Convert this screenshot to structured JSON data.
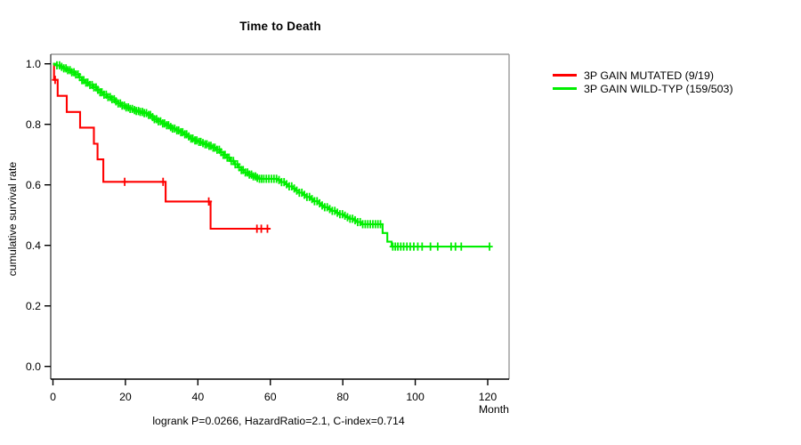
{
  "window": {
    "background": "#ffffff"
  },
  "chart_data": {
    "type": "line",
    "subtype": "kaplan-meier-step",
    "title": "Time to Death",
    "xlabel": "Month",
    "ylabel": "cumulative survival rate",
    "caption": "logrank P=0.0266, HazardRatio=2.1, C-index=0.714",
    "stats": {
      "logrank_p": 0.0266,
      "hazard_ratio": 2.1,
      "c_index": 0.714
    },
    "x_ticks": [
      0,
      20,
      40,
      60,
      80,
      100,
      120
    ],
    "y_ticks": [
      "0.0",
      "0.2",
      "0.4",
      "0.6",
      "0.8",
      "1.0"
    ],
    "xlim": [
      0,
      125
    ],
    "ylim": [
      0,
      1
    ],
    "grid": false,
    "legend_position": "right-outside",
    "axis_color": "#000000",
    "frame_color": "#9a9a9a",
    "series": [
      {
        "name": "mutated",
        "label": "3P GAIN MUTATED (9/19)",
        "color": "#ff0000",
        "events": 9,
        "n": 19,
        "points": [
          [
            0,
            1.0
          ],
          [
            0.3,
            0.947
          ],
          [
            1.3,
            0.894
          ],
          [
            3.8,
            0.841
          ],
          [
            7.5,
            0.789
          ],
          [
            11.3,
            0.736
          ],
          [
            12.3,
            0.684
          ],
          [
            13.9,
            0.61
          ],
          [
            31.1,
            0.545
          ],
          [
            43.5,
            0.455
          ],
          [
            60,
            0.455
          ]
        ],
        "censor_months": [
          0.6,
          19.8,
          30.4,
          43.0,
          56.3,
          57.5,
          59.2
        ]
      },
      {
        "name": "wild-typ",
        "label": "3P GAIN WILD-TYP (159/503)",
        "color": "#00ee00",
        "events": 159,
        "n": 503,
        "points": [
          [
            0,
            1.0
          ],
          [
            1,
            0.995
          ],
          [
            2,
            0.99
          ],
          [
            3,
            0.985
          ],
          [
            4,
            0.979
          ],
          [
            5,
            0.972
          ],
          [
            6,
            0.965
          ],
          [
            7,
            0.956
          ],
          [
            8,
            0.946
          ],
          [
            9,
            0.938
          ],
          [
            10,
            0.93
          ],
          [
            11,
            0.922
          ],
          [
            12,
            0.914
          ],
          [
            13,
            0.906
          ],
          [
            14,
            0.898
          ],
          [
            15,
            0.89
          ],
          [
            16,
            0.883
          ],
          [
            17,
            0.876
          ],
          [
            18,
            0.869
          ],
          [
            19,
            0.862
          ],
          [
            20,
            0.856
          ],
          [
            21,
            0.851
          ],
          [
            22,
            0.847
          ],
          [
            23,
            0.844
          ],
          [
            24,
            0.841
          ],
          [
            25,
            0.837
          ],
          [
            26,
            0.831
          ],
          [
            27,
            0.824
          ],
          [
            28,
            0.817
          ],
          [
            29,
            0.81
          ],
          [
            30,
            0.803
          ],
          [
            31,
            0.797
          ],
          [
            32,
            0.791
          ],
          [
            33,
            0.786
          ],
          [
            34,
            0.78
          ],
          [
            35,
            0.774
          ],
          [
            36,
            0.767
          ],
          [
            37,
            0.76
          ],
          [
            38,
            0.753
          ],
          [
            39,
            0.747
          ],
          [
            40,
            0.742
          ],
          [
            41,
            0.738
          ],
          [
            42,
            0.734
          ],
          [
            43,
            0.729
          ],
          [
            44,
            0.723
          ],
          [
            45,
            0.716
          ],
          [
            46,
            0.708
          ],
          [
            47,
            0.699
          ],
          [
            48,
            0.69
          ],
          [
            49,
            0.679
          ],
          [
            50,
            0.668
          ],
          [
            51,
            0.658
          ],
          [
            52,
            0.649
          ],
          [
            53,
            0.641
          ],
          [
            54,
            0.634
          ],
          [
            55,
            0.628
          ],
          [
            56,
            0.623
          ],
          [
            57,
            0.62
          ],
          [
            62,
            0.616
          ],
          [
            63,
            0.609
          ],
          [
            64,
            0.602
          ],
          [
            65,
            0.595
          ],
          [
            66,
            0.588
          ],
          [
            67,
            0.581
          ],
          [
            68,
            0.574
          ],
          [
            69,
            0.567
          ],
          [
            70,
            0.56
          ],
          [
            71,
            0.553
          ],
          [
            72,
            0.546
          ],
          [
            73,
            0.539
          ],
          [
            74,
            0.532
          ],
          [
            75,
            0.526
          ],
          [
            76,
            0.52
          ],
          [
            77,
            0.514
          ],
          [
            78,
            0.508
          ],
          [
            79,
            0.503
          ],
          [
            80,
            0.498
          ],
          [
            81,
            0.493
          ],
          [
            82,
            0.488
          ],
          [
            83,
            0.483
          ],
          [
            84,
            0.477
          ],
          [
            85,
            0.47
          ],
          [
            91,
            0.441
          ],
          [
            92.3,
            0.412
          ],
          [
            93.5,
            0.396
          ],
          [
            120.6,
            0.396
          ]
        ],
        "censor_months": [
          1.1,
          1.8,
          2.4,
          3.0,
          3.6,
          4.1,
          4.7,
          5.2,
          5.8,
          6.3,
          6.9,
          7.4,
          8.0,
          8.5,
          9.1,
          9.6,
          10.2,
          10.8,
          11.3,
          11.9,
          12.4,
          13.0,
          13.5,
          14.1,
          14.7,
          15.2,
          15.8,
          16.3,
          16.9,
          17.4,
          18.0,
          18.6,
          19.1,
          19.7,
          20.2,
          20.8,
          21.3,
          21.9,
          22.5,
          23.0,
          23.6,
          24.1,
          24.7,
          25.2,
          25.8,
          26.4,
          26.9,
          27.5,
          28.0,
          28.6,
          29.1,
          29.7,
          30.3,
          30.8,
          31.4,
          31.9,
          32.5,
          33.0,
          33.6,
          34.2,
          34.7,
          35.3,
          35.8,
          36.4,
          36.9,
          37.5,
          38.1,
          38.6,
          39.2,
          39.7,
          40.3,
          40.8,
          41.4,
          42.0,
          42.5,
          43.1,
          43.6,
          44.2,
          44.7,
          45.3,
          45.9,
          46.4,
          47.0,
          47.5,
          48.1,
          48.6,
          49.2,
          49.8,
          50.3,
          50.9,
          51.4,
          52.0,
          52.5,
          53.1,
          53.7,
          54.2,
          54.8,
          55.3,
          55.9,
          56.4,
          57.0,
          57.6,
          58.2,
          58.9,
          59.6,
          60.3,
          61.0,
          61.7,
          62.4,
          63.1,
          63.8,
          64.5,
          65.2,
          65.9,
          66.6,
          67.3,
          68.0,
          68.7,
          69.4,
          70.1,
          70.8,
          71.5,
          72.2,
          72.9,
          73.6,
          74.3,
          75.0,
          75.7,
          76.4,
          77.1,
          77.8,
          78.5,
          79.2,
          79.9,
          80.6,
          81.3,
          82.0,
          82.7,
          83.4,
          84.1,
          84.8,
          85.5,
          86.2,
          86.9,
          87.6,
          88.3,
          89.0,
          89.7,
          90.4,
          93.8,
          94.5,
          95.2,
          96.0,
          96.8,
          97.7,
          98.6,
          99.6,
          100.7,
          101.9,
          104.2,
          106.2,
          109.9,
          111.1,
          112.7,
          120.5
        ]
      }
    ]
  }
}
